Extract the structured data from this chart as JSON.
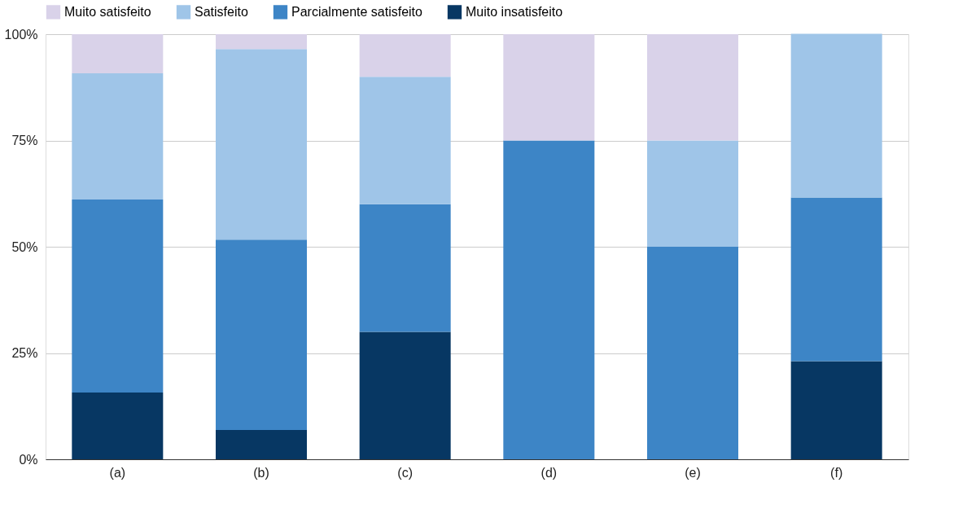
{
  "chart_data": {
    "type": "bar",
    "stacked": true,
    "categories": [
      "(a)",
      "(b)",
      "(c)",
      "(d)",
      "(e)",
      "(f)"
    ],
    "series": [
      {
        "name": "Muito insatisfeito",
        "color": "#073763",
        "values": [
          15.7,
          6.9,
          30,
          0,
          0,
          23.1
        ]
      },
      {
        "name": "Parcialmente satisfeito",
        "color": "#3d85c6",
        "values": [
          45.4,
          44.8,
          30,
          75,
          50,
          38.5
        ]
      },
      {
        "name": "Satisfeito",
        "color": "#9fc5e8",
        "values": [
          29.7,
          44.8,
          30,
          0,
          25,
          38.5
        ]
      },
      {
        "name": "Muito satisfeito",
        "color": "#d9d2e9",
        "values": [
          9.2,
          3.5,
          10,
          25,
          25,
          0
        ]
      }
    ],
    "ylim": [
      0,
      100
    ],
    "yticks": [
      {
        "value": 0,
        "label": "0%"
      },
      {
        "value": 25,
        "label": "25%"
      },
      {
        "value": 50,
        "label": "50%"
      },
      {
        "value": 75,
        "label": "75%"
      },
      {
        "value": 100,
        "label": "100%"
      }
    ],
    "grid": "y",
    "legend": "top"
  }
}
